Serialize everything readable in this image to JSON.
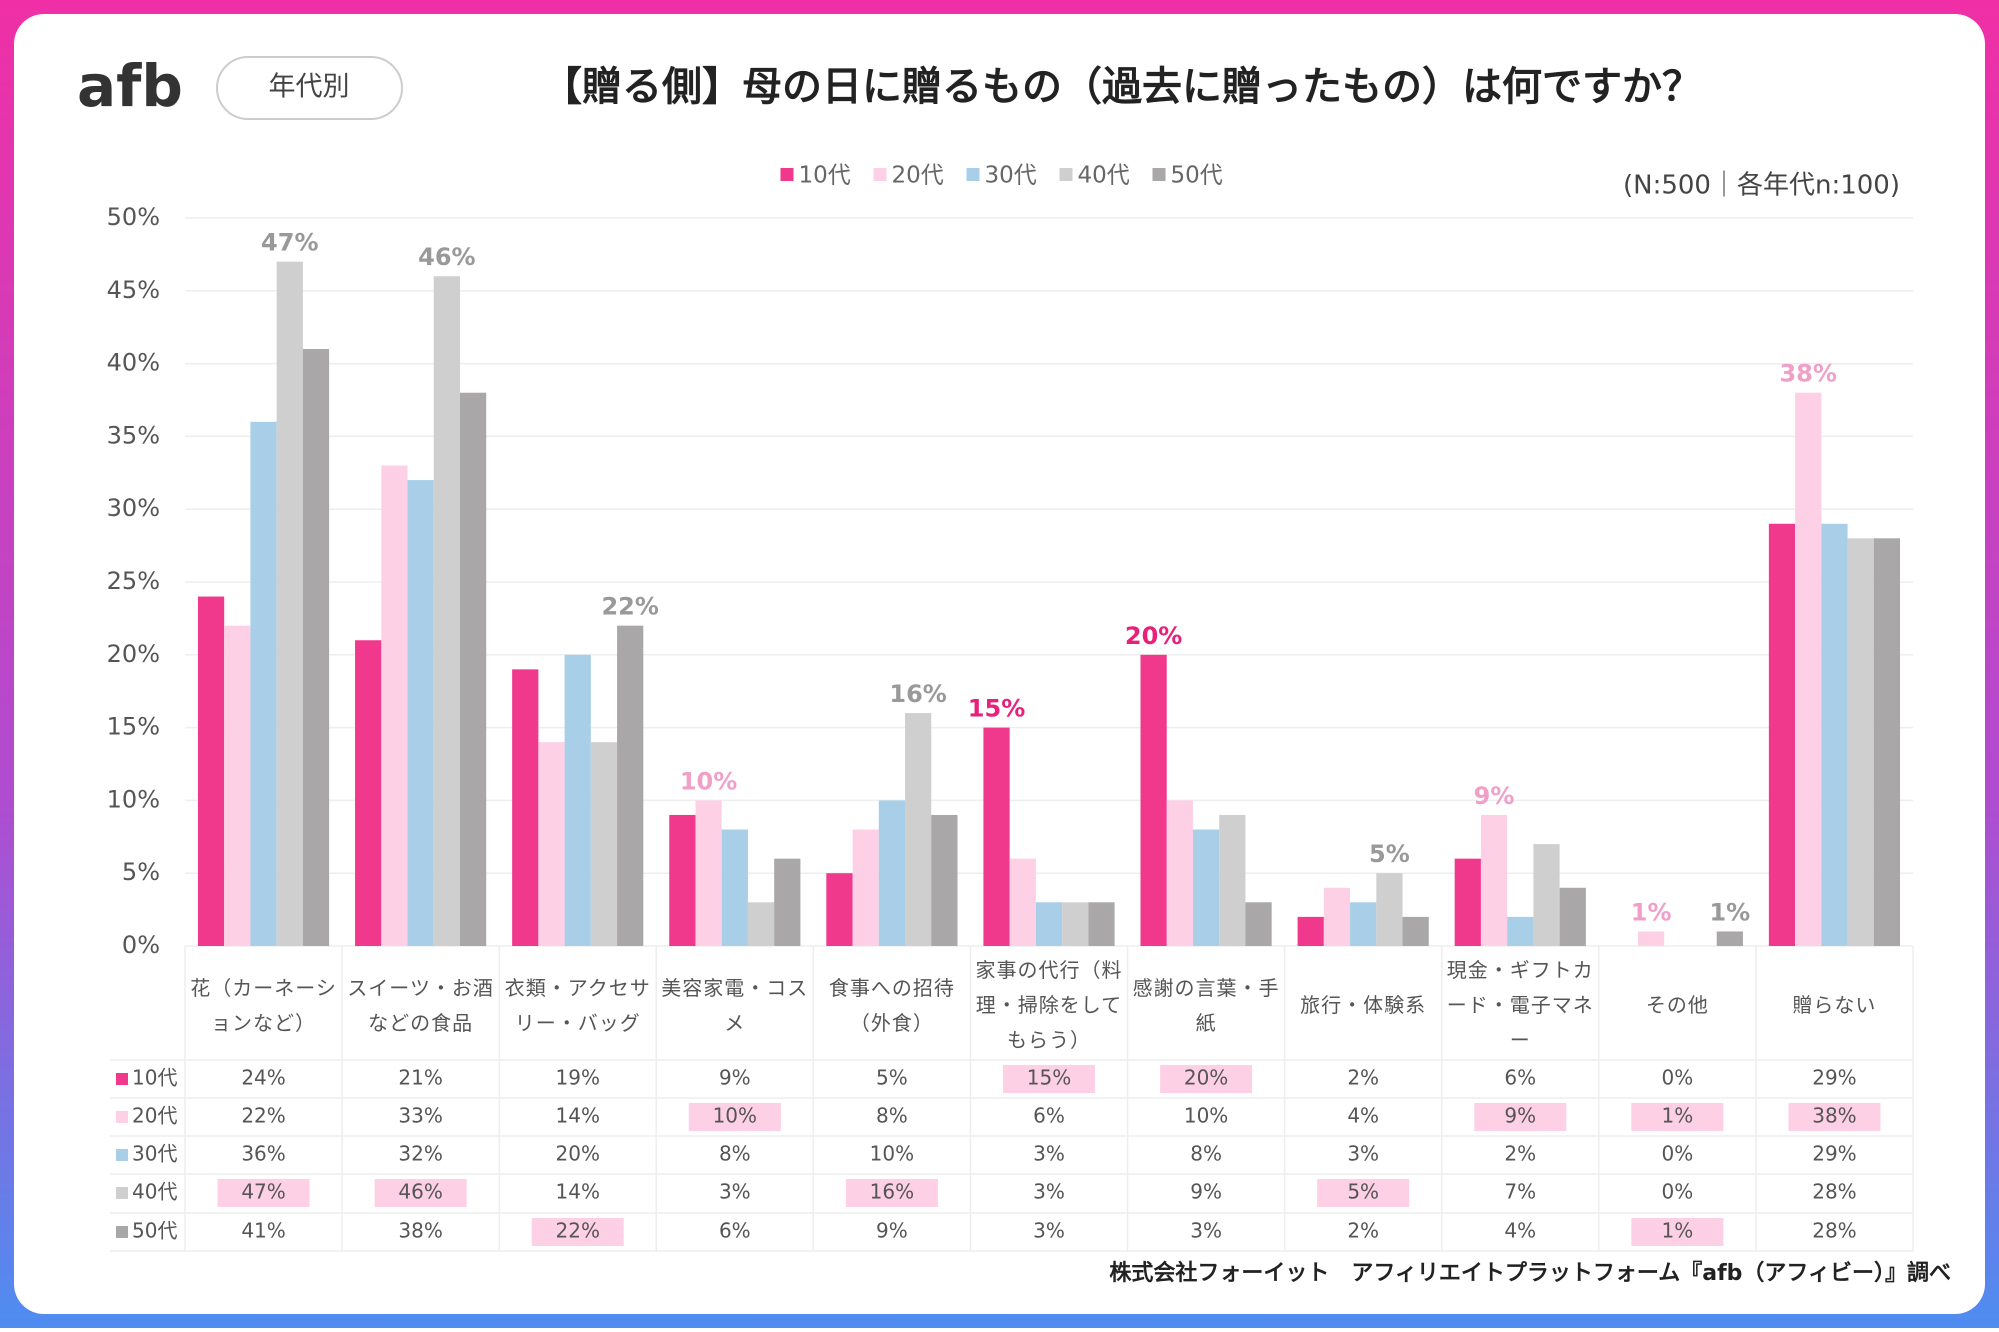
{
  "logo": "afb",
  "badge": "年代別",
  "note": "(N:500｜各年代n:100)",
  "footer": "株式会社フォーイット　アフィリエイトプラットフォーム『afb（アフィビー）』調べ",
  "chart_data": {
    "type": "bar",
    "title": "【贈る側】母の日に贈るもの（過去に贈ったもの）は何ですか？",
    "categories": [
      "花（カーネーションなど）",
      "スイーツ・お酒などの食品",
      "衣類・アクセサリー・バッグ",
      "美容家電・コスメ",
      "食事への招待（外食）",
      "家事の代行（料理・掃除をしてもらう）",
      "感謝の言葉・手紙",
      "旅行・体験系",
      "現金・ギフトカード・電子マネー",
      "その他",
      "贈らない"
    ],
    "series": [
      {
        "name": "10代",
        "color": "#f0388c",
        "label_color": "#e8207c",
        "values": [
          24,
          21,
          19,
          9,
          5,
          15,
          20,
          2,
          6,
          0,
          29
        ],
        "value_labels": [
          "24%",
          "21%",
          "19%",
          "9%",
          "5%",
          "15%",
          "20%",
          "2%",
          "6%",
          "0%",
          "29%"
        ]
      },
      {
        "name": "20代",
        "color": "#fdd0e6",
        "label_color": "#f0a0c8",
        "values": [
          22,
          33,
          14,
          10,
          8,
          6,
          10,
          4,
          9,
          1,
          38
        ],
        "value_labels": [
          "22%",
          "33%",
          "14%",
          "10%",
          "8%",
          "6%",
          "10%",
          "4%",
          "9%",
          "1%",
          "38%"
        ]
      },
      {
        "name": "30代",
        "color": "#a9cfe8",
        "label_color": "#7fb0d6",
        "values": [
          36,
          32,
          20,
          8,
          10,
          3,
          8,
          3,
          2,
          0,
          29
        ],
        "value_labels": [
          "36%",
          "32%",
          "20%",
          "8%",
          "10%",
          "3%",
          "8%",
          "3%",
          "2%",
          "0%",
          "29%"
        ]
      },
      {
        "name": "40代",
        "color": "#d0cfd0",
        "label_color": "#999999",
        "values": [
          47,
          46,
          14,
          3,
          16,
          3,
          9,
          5,
          7,
          0,
          28
        ],
        "value_labels": [
          "47%",
          "46%",
          "14%",
          "3%",
          "16%",
          "3%",
          "9%",
          "5%",
          "7%",
          "0%",
          "28%"
        ]
      },
      {
        "name": "50代",
        "color": "#a9a7a8",
        "label_color": "#999999",
        "values": [
          41,
          38,
          22,
          6,
          9,
          3,
          3,
          2,
          4,
          1,
          28
        ],
        "value_labels": [
          "41%",
          "38%",
          "22%",
          "6%",
          "9%",
          "3%",
          "3%",
          "2%",
          "4%",
          "1%",
          "28%"
        ]
      }
    ],
    "ylim": [
      0,
      50
    ],
    "yticks": [
      {
        "value": 0,
        "label": "0%"
      },
      {
        "value": 5,
        "label": "5%"
      },
      {
        "value": 10,
        "label": "10%"
      },
      {
        "value": 15,
        "label": "15%"
      },
      {
        "value": 20,
        "label": "20%"
      },
      {
        "value": 25,
        "label": "25%"
      },
      {
        "value": 30,
        "label": "30%"
      },
      {
        "value": 35,
        "label": "35%"
      },
      {
        "value": 40,
        "label": "40%"
      },
      {
        "value": 45,
        "label": "45%"
      },
      {
        "value": 50,
        "label": "50%"
      }
    ],
    "grid": true,
    "legend": "top"
  }
}
